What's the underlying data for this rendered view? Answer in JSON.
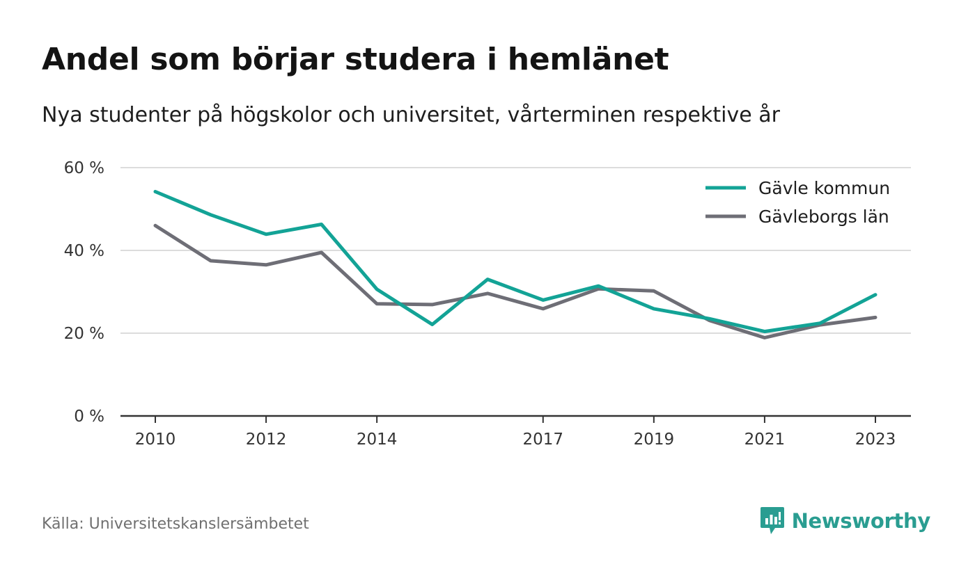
{
  "title": "Andel som börjar studera i hemlänet",
  "subtitle": "Nya studenter på högskolor och universitet, vårterminen respektive år",
  "source": "Källa: Universitetskanslersämbetet",
  "brand": {
    "name": "Newsworthy",
    "icon": "newsworthy-logo-icon",
    "color": "#2a9d91"
  },
  "chart_data": {
    "type": "line",
    "title": "Andel som börjar studera i hemlänet",
    "subtitle": "Nya studenter på högskolor och universitet, vårterminen respektive år",
    "x": [
      2010,
      2011,
      2012,
      2013,
      2014,
      2015,
      2016,
      2017,
      2018,
      2019,
      2020,
      2021,
      2022,
      2023
    ],
    "x_tick_labels": [
      "2010",
      "2012",
      "2014",
      "2017",
      "2019",
      "2021",
      "2023"
    ],
    "x_ticks": [
      2010,
      2012,
      2014,
      2017,
      2019,
      2021,
      2023
    ],
    "y_ticks": [
      0,
      20,
      40,
      60
    ],
    "y_tick_labels": [
      "0 %",
      "20 %",
      "40 %",
      "60 %"
    ],
    "ylim": [
      0,
      60
    ],
    "xlabel": "",
    "ylabel": "",
    "grid": true,
    "legend_position": "top-right",
    "series": [
      {
        "name": "Gävle kommun",
        "color": "#13a396",
        "values": [
          54.2,
          48.6,
          43.9,
          46.3,
          30.6,
          22.1,
          33.0,
          28.0,
          31.4,
          25.9,
          23.5,
          20.4,
          22.4,
          29.3
        ]
      },
      {
        "name": "Gävleborgs län",
        "color": "#6e6e76",
        "values": [
          46.0,
          37.5,
          36.5,
          39.5,
          27.1,
          26.9,
          29.6,
          25.9,
          30.7,
          30.2,
          23.1,
          18.9,
          22.0,
          23.8
        ]
      }
    ]
  }
}
